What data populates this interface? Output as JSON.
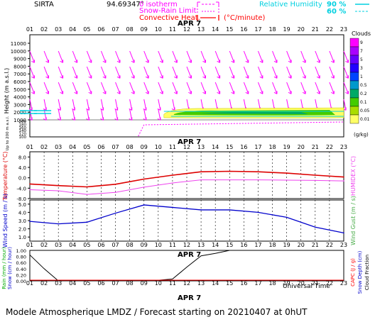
{
  "header": {
    "site": "SIRTA",
    "coords": "94.69347°",
    "legend": {
      "isotherm": "0 isotherm",
      "snow_rain": "Snow-Rain Limit",
      "convective": "Convective Heat.",
      "convective_unit": "(°C/minute)",
      "rh_label": "Relative Humidity",
      "rh_90": "90 %",
      "rh_60": "60 %"
    }
  },
  "colors": {
    "arrow": "#ff00ff",
    "isotherm": "#ff00ff",
    "convective": "#ff0000",
    "humidity": "#00d0e0",
    "temperature": "#dd0000",
    "humidex": "#ee44ee",
    "wind": "#0000cc",
    "rain": "#000000",
    "capc": "#ff0000"
  },
  "hours": [
    "01",
    "02",
    "03",
    "04",
    "05",
    "06",
    "07",
    "08",
    "09",
    "10",
    "11",
    "12",
    "13",
    "14",
    "15",
    "16",
    "17",
    "18",
    "19",
    "20",
    "21",
    "22",
    "23"
  ],
  "date_label": "APR 7",
  "xaxis_label": "Universal Time",
  "footer": "Modele Atmospherique LMDZ / Forecast starting on 20210407 at 0hUT",
  "chart_data": [
    {
      "type": "scatter",
      "panel": "height",
      "ylabel": "Height (m a.s.l.)",
      "ylabel_low": "Up to 200 m a.s.l.",
      "yticks_upper": [
        1000,
        2000,
        3000,
        4000,
        5000,
        6000,
        7000,
        8000,
        9000,
        10000,
        11000
      ],
      "yticks_lower": [
        100,
        120,
        140,
        160,
        180,
        200
      ],
      "cloud_band": {
        "hours": [
          10,
          23
        ],
        "base_m": 1200,
        "top_m": 2500,
        "max_g_per_kg": 0.2
      },
      "isotherm_0": {
        "hours": [
          9,
          23
        ],
        "height_m": 160
      },
      "clouds_scale": {
        "label": "Clouds",
        "unit": "(g/kg)",
        "ticks": [
          "9",
          "7",
          "5",
          "3",
          "1",
          "0.5",
          "0.2",
          "0.1",
          "0.05",
          "0.01"
        ],
        "colors": [
          "#ff00ff",
          "#aa00ff",
          "#6600ff",
          "#2200ff",
          "#0044ff",
          "#0099cc",
          "#00aa66",
          "#44cc00",
          "#aadd00",
          "#ffff66"
        ]
      }
    },
    {
      "type": "line",
      "panel": "temperature",
      "ylabel": "Temperature (°C)",
      "ylabel_right": "HUMIDEX (°C)",
      "yticks": [
        "8.0",
        "4.0",
        "0.0",
        "-4.0",
        "-8.0"
      ],
      "ylim": [
        -8,
        10
      ],
      "x": [
        1,
        3,
        5,
        7,
        9,
        11,
        13,
        15,
        17,
        19,
        21,
        23
      ],
      "series": [
        {
          "name": "Temperature",
          "values": [
            -2.4,
            -3.0,
            -3.5,
            -2.5,
            -0.5,
            1.0,
            2.3,
            2.5,
            2.3,
            1.8,
            1.0,
            0.3
          ]
        },
        {
          "name": "Humidex",
          "values": [
            -4.6,
            -5.0,
            -6.4,
            -5.6,
            -3.6,
            -2.0,
            -0.8,
            -0.8,
            -0.8,
            -0.9,
            -1.0,
            -1.2
          ]
        }
      ]
    },
    {
      "type": "line",
      "panel": "wind",
      "ylabel": "Wind Speed (m / s)",
      "ylabel_right": "Wind Gust (m / s)",
      "yticks": [
        "5.0",
        "4.0",
        "3.0",
        "2.0",
        "1.0"
      ],
      "ylim": [
        0.5,
        5.5
      ],
      "x": [
        1,
        3,
        5,
        7,
        9,
        11,
        13,
        15,
        17,
        19,
        21,
        23
      ],
      "series": [
        {
          "name": "Wind Speed",
          "values": [
            2.9,
            2.6,
            2.8,
            3.9,
            4.9,
            4.6,
            4.3,
            4.3,
            4.0,
            3.4,
            2.2,
            1.5
          ]
        }
      ]
    },
    {
      "type": "line",
      "panel": "rain",
      "ylabel": "Rain (mm / hour)",
      "ylabel2": "Snow (cm / hour)",
      "ylabel_right": "CAPC (J / g)",
      "ylabel_right2": "Snow Depth (cm)",
      "ylabel_right3": "Cloud Fraction",
      "yticks": [
        "1.00",
        "0.80",
        "0.60",
        "0.40",
        "0.20",
        "0.00"
      ],
      "ylim": [
        0,
        1
      ],
      "x": [
        1,
        2,
        3,
        5,
        9,
        10,
        11,
        12,
        13,
        14,
        15,
        17,
        20,
        23
      ],
      "series": [
        {
          "name": "Cloud Fraction",
          "values": [
            0.85,
            0.4,
            0.0,
            0.0,
            0.0,
            0.02,
            0.06,
            0.45,
            0.82,
            0.9,
            1.0,
            1.0,
            1.0,
            1.0
          ]
        }
      ]
    }
  ]
}
